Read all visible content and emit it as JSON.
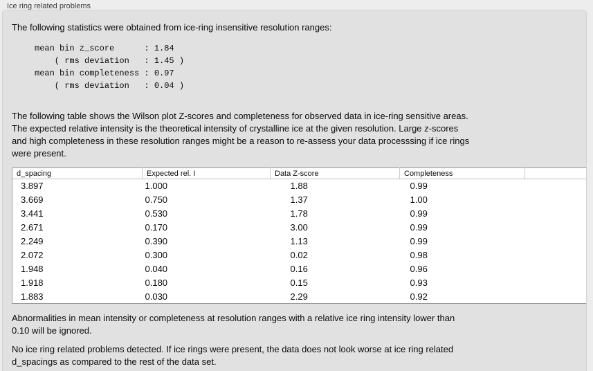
{
  "panel": {
    "title": "Ice ring related problems"
  },
  "intro_text": "The following statistics were obtained from ice-ring insensitive resolution ranges:",
  "stats_block": "mean bin z_score      : 1.84\n    ( rms deviation   : 1.45 )\nmean bin completeness : 0.97\n    ( rms deviation   : 0.04 )",
  "table_description": "The following table shows the Wilson plot Z-scores and completeness for observed data in ice-ring sensitive areas.\nThe expected relative intensity is the theoretical intensity of crystalline ice at the given resolution. Large z-scores\nand high completeness in these resolution ranges might be a reason to re-assess your data processsing if ice rings\nwere present.",
  "table": {
    "columns": [
      "d_spacing",
      "Expected rel. I",
      "Data Z-score",
      "Completeness",
      ""
    ],
    "rows": [
      [
        "3.897",
        "1.000",
        "1.88",
        "0.99"
      ],
      [
        "3.669",
        "0.750",
        "1.37",
        "1.00"
      ],
      [
        "3.441",
        "0.530",
        "1.78",
        "0.99"
      ],
      [
        "2.671",
        "0.170",
        "3.00",
        "0.99"
      ],
      [
        "2.249",
        "0.390",
        "1.13",
        "0.99"
      ],
      [
        "2.072",
        "0.300",
        "0.02",
        "0.98"
      ],
      [
        "1.948",
        "0.040",
        "0.16",
        "0.96"
      ],
      [
        "1.918",
        "0.180",
        "0.15",
        "0.93"
      ],
      [
        "1.883",
        "0.030",
        "2.29",
        "0.92"
      ]
    ]
  },
  "ignore_note": "Abnormalities in mean intensity or completeness at resolution ranges with a relative ice ring intensity lower than\n0.10 will be ignored.",
  "conclusion": "No ice ring related problems detected. If ice rings were present, the data does not look worse at ice ring related\nd_spacings as compared to the rest of the data set.",
  "colors": {
    "outer_bg": "#ededed",
    "panel_bg": "#e1e1e1",
    "panel_border": "#d2d2d2",
    "table_bg": "#ffffff",
    "table_border": "#999999",
    "header_line": "#bebebe",
    "header_sep": "#cdcdcd",
    "text": "#0a0a0a",
    "title_text": "#3c3c3c"
  }
}
